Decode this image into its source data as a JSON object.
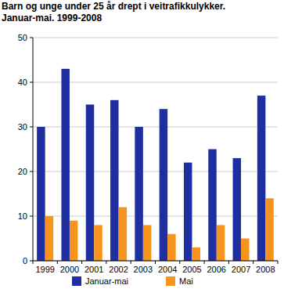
{
  "chart_data": {
    "type": "bar",
    "title": "Barn og unge under 25 år drept i veitrafikkulykker.",
    "subtitle": "Januar-mai. 1999-2008",
    "categories": [
      "1999",
      "2000",
      "2001",
      "2002",
      "2003",
      "2004",
      "2005",
      "2006",
      "2007",
      "2008"
    ],
    "series": [
      {
        "name": "Januar-mai",
        "color": "#1f2ea0",
        "values": [
          30,
          43,
          35,
          36,
          30,
          34,
          22,
          25,
          23,
          37
        ]
      },
      {
        "name": "Mai",
        "color": "#f7941d",
        "values": [
          10,
          9,
          8,
          12,
          8,
          6,
          3,
          8,
          5,
          14
        ]
      }
    ],
    "ylim": [
      0,
      50
    ],
    "yticks": [
      0,
      10,
      20,
      30,
      40,
      50
    ],
    "grid": true,
    "legend": "bottom"
  }
}
